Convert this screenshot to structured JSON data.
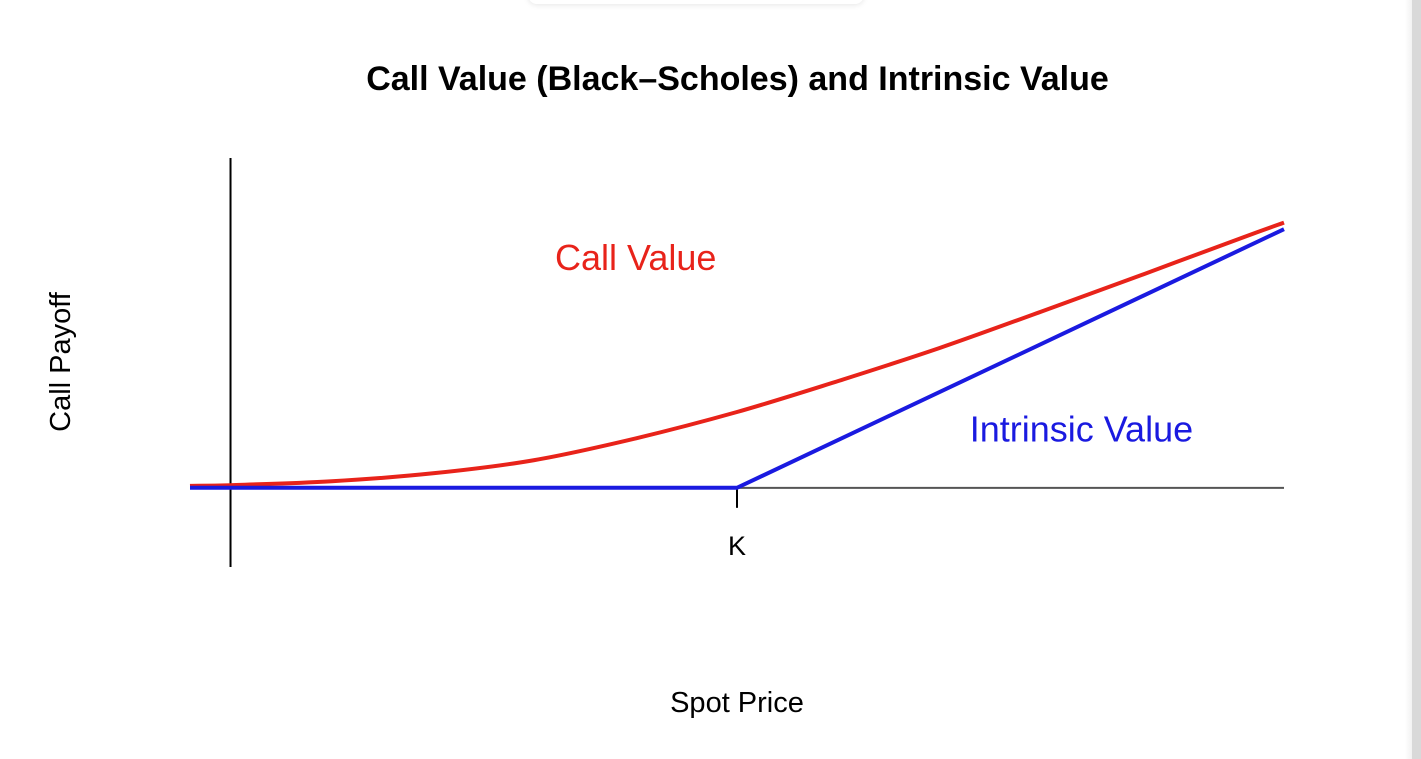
{
  "chart_data": {
    "type": "line",
    "title": "Call Value (Black–Scholes) and Intrinsic Value",
    "xlabel": "Spot Price",
    "ylabel": "Call Payoff",
    "x_ticks": [
      "K"
    ],
    "grid": false,
    "colors": {
      "call_value": "#e8231a",
      "intrinsic_value": "#1a1ae0",
      "axis": "#000000",
      "zero_line": "#555555"
    },
    "annotations": [
      {
        "text": "Call Value",
        "series": "call_value"
      },
      {
        "text": "Intrinsic Value",
        "series": "intrinsic_value"
      }
    ],
    "strike": 50,
    "xlim": [
      -4,
      104
    ],
    "ylim": [
      -12,
      50
    ],
    "series": [
      {
        "key": "call_value",
        "name": "Call Value",
        "x": [
          -4,
          0,
          10,
          20,
          30,
          40,
          50,
          60,
          70,
          80,
          90,
          100,
          104
        ],
        "y": [
          0.3,
          0.4,
          1.0,
          2.2,
          4.2,
          7.5,
          11.5,
          16.2,
          21.2,
          26.7,
          32.3,
          38.0,
          40.2
        ]
      },
      {
        "key": "intrinsic_value",
        "name": "Intrinsic Value",
        "x": [
          -4,
          50,
          104
        ],
        "y": [
          0,
          0,
          39.2
        ]
      }
    ]
  }
}
